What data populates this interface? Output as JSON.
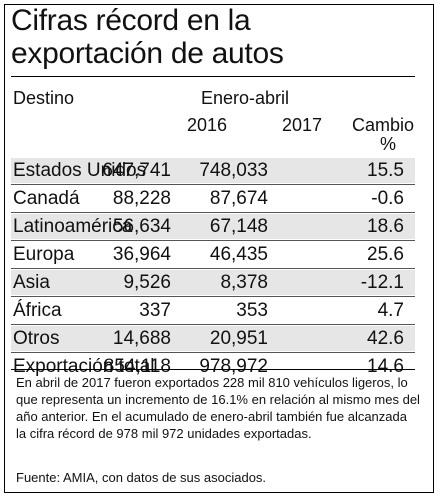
{
  "title_line1": "Cifras récord en la",
  "title_line2": "exportación de autos",
  "header": {
    "destino": "Destino",
    "period": "Enero-abril",
    "year1": "2016",
    "year2": "2017",
    "cambio": "Cambio",
    "percent": "%"
  },
  "rows": [
    {
      "destino": "Estados Unidos",
      "y2016": "647,741",
      "y2017": "748,033",
      "cambio": "15.5"
    },
    {
      "destino": "Canadá",
      "y2016": "88,228",
      "y2017": "87,674",
      "cambio": "-0.6"
    },
    {
      "destino": "Latinoamérica",
      "y2016": "56,634",
      "y2017": "67,148",
      "cambio": "18.6"
    },
    {
      "destino": "Europa",
      "y2016": "36,964",
      "y2017": "46,435",
      "cambio": "25.6"
    },
    {
      "destino": "Asia",
      "y2016": "9,526",
      "y2017": "8,378",
      "cambio": "-12.1"
    },
    {
      "destino": "África",
      "y2016": "337",
      "y2017": "353",
      "cambio": "4.7"
    },
    {
      "destino": "Otros",
      "y2016": "14,688",
      "y2017": "20,951",
      "cambio": "42.6"
    },
    {
      "destino": "Exportación total",
      "y2016": "854,118",
      "y2017": "978,972",
      "cambio": "14.6"
    }
  ],
  "note": "En abril de 2017 fueron exportados 228 mil 810 vehículos ligeros, lo que representa un incremento de 16.1% en relación al mismo mes del año anterior. En el acumulado de enero-abril también fue alcanzada la cifra récord de 978 mil 972 unidades exportadas.",
  "source": "Fuente: AMIA, con datos de sus asociados.",
  "colors": {
    "shade": "#e6e6e6",
    "text": "#111111",
    "rule": "#000000"
  }
}
